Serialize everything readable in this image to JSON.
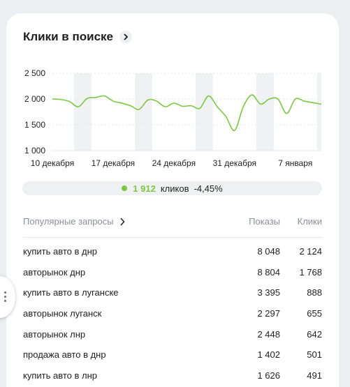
{
  "widget": {
    "title": "Клики в поиске",
    "arrow_icon": "chevron-right-icon"
  },
  "chart_data": {
    "type": "line",
    "y_tick_labels": [
      "2 500",
      "2 000",
      "1 500",
      "1 000"
    ],
    "y_ticks": [
      2500,
      2000,
      1500,
      1000
    ],
    "ylim": [
      1000,
      2500
    ],
    "x_tick_labels": [
      "10 декабря",
      "17 декабря",
      "24 декабря",
      "31 декабря",
      "7 января"
    ],
    "x_tick_days": [
      0,
      7,
      14,
      21,
      28
    ],
    "x_range_days": [
      0,
      31
    ],
    "weekend_ranges": [
      [
        2.5,
        4.5
      ],
      [
        9.5,
        11.5
      ],
      [
        16.5,
        18.5
      ],
      [
        23.5,
        25.5
      ],
      [
        30.5,
        31
      ]
    ],
    "series": [
      {
        "color": "#7ac943",
        "points": [
          [
            0,
            2000
          ],
          [
            1,
            1990
          ],
          [
            2,
            1950
          ],
          [
            3,
            1850
          ],
          [
            4,
            2010
          ],
          [
            5,
            2030
          ],
          [
            6,
            2060
          ],
          [
            7,
            1960
          ],
          [
            8,
            1920
          ],
          [
            9,
            1870
          ],
          [
            10,
            1800
          ],
          [
            11,
            1980
          ],
          [
            12,
            1960
          ],
          [
            13,
            1850
          ],
          [
            14,
            1920
          ],
          [
            15,
            1860
          ],
          [
            16,
            1870
          ],
          [
            17,
            1820
          ],
          [
            18,
            2060
          ],
          [
            19,
            1850
          ],
          [
            20,
            1660
          ],
          [
            21,
            1390
          ],
          [
            22,
            1850
          ],
          [
            23,
            2080
          ],
          [
            24,
            1900
          ],
          [
            25,
            2000
          ],
          [
            26,
            2000
          ],
          [
            27,
            1720
          ],
          [
            28,
            2000
          ],
          [
            29,
            1960
          ],
          [
            30,
            1930
          ],
          [
            31,
            1900
          ]
        ]
      }
    ]
  },
  "summary": {
    "value": "1 912",
    "label": "кликов",
    "change": "-4,45%",
    "color": "#7ac943"
  },
  "table": {
    "col_queries": "Популярные запросы",
    "col_impressions": "Показы",
    "col_clicks": "Клики",
    "rows": [
      {
        "query": "купить авто в днр",
        "impressions": "8 048",
        "clicks": "2 124"
      },
      {
        "query": "авторынок днр",
        "impressions": "8 804",
        "clicks": "1 768"
      },
      {
        "query": "купить авто в луганске",
        "impressions": "3 395",
        "clicks": "888"
      },
      {
        "query": "авторынок луганск",
        "impressions": "2 297",
        "clicks": "655"
      },
      {
        "query": "авторынок лнр",
        "impressions": "2 448",
        "clicks": "642"
      },
      {
        "query": "продажа авто в днр",
        "impressions": "1 402",
        "clicks": "501"
      },
      {
        "query": "купить авто в лнр",
        "impressions": "1 626",
        "clicks": "491"
      }
    ]
  }
}
